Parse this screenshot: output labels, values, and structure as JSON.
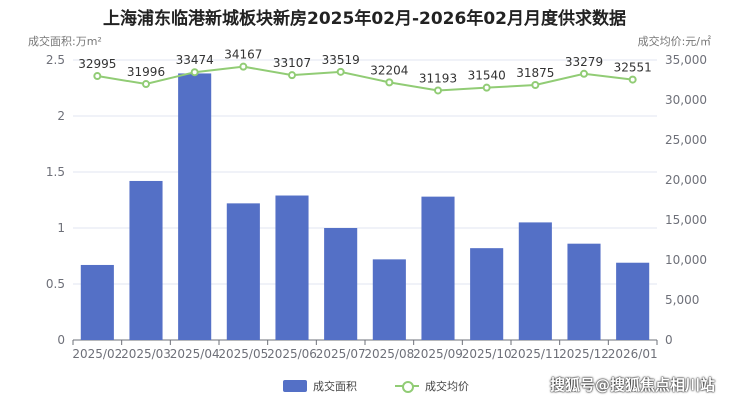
{
  "chart_data": {
    "type": "bar",
    "title": "上海浦东临港新城板块新房2025年02月-2026年02月月度供求数据",
    "y_left_label": "成交面积:万m²",
    "y_right_label": "成交均价:元/㎡",
    "categories": [
      "2025/02",
      "2025/03",
      "2025/04",
      "2025/05",
      "2025/06",
      "2025/07",
      "2025/08",
      "2025/09",
      "2025/10",
      "2025/11",
      "2025/12",
      "2026/01"
    ],
    "ylim_left": [
      0,
      2.5
    ],
    "yticks_left": [
      "0",
      "0.5",
      "1",
      "1.5",
      "2",
      "2.5"
    ],
    "ylim_right": [
      0,
      35000
    ],
    "yticks_right": [
      "0",
      "5,000",
      "10,000",
      "15,000",
      "20,000",
      "25,000",
      "30,000",
      "35,000"
    ],
    "series": [
      {
        "name": "成交面积",
        "type": "bar",
        "axis": "left",
        "color": "#5470c6",
        "values": [
          0.67,
          1.42,
          2.38,
          1.22,
          1.29,
          1.0,
          0.72,
          1.28,
          0.82,
          1.05,
          0.86,
          0.69
        ]
      },
      {
        "name": "成交均价",
        "type": "line",
        "axis": "right",
        "color": "#91cc75",
        "values": [
          32995,
          31996,
          33474,
          34167,
          33107,
          33519,
          32204,
          31193,
          31540,
          31875,
          33279,
          32551
        ],
        "labels": [
          "32995",
          "31996",
          "33474",
          "34167",
          "33107",
          "33519",
          "32204",
          "31193",
          "31540",
          "31875",
          "33279",
          "32551"
        ]
      }
    ],
    "grid": true,
    "legend_position": "bottom"
  },
  "watermark": "搜狐号@搜狐焦点相川站"
}
